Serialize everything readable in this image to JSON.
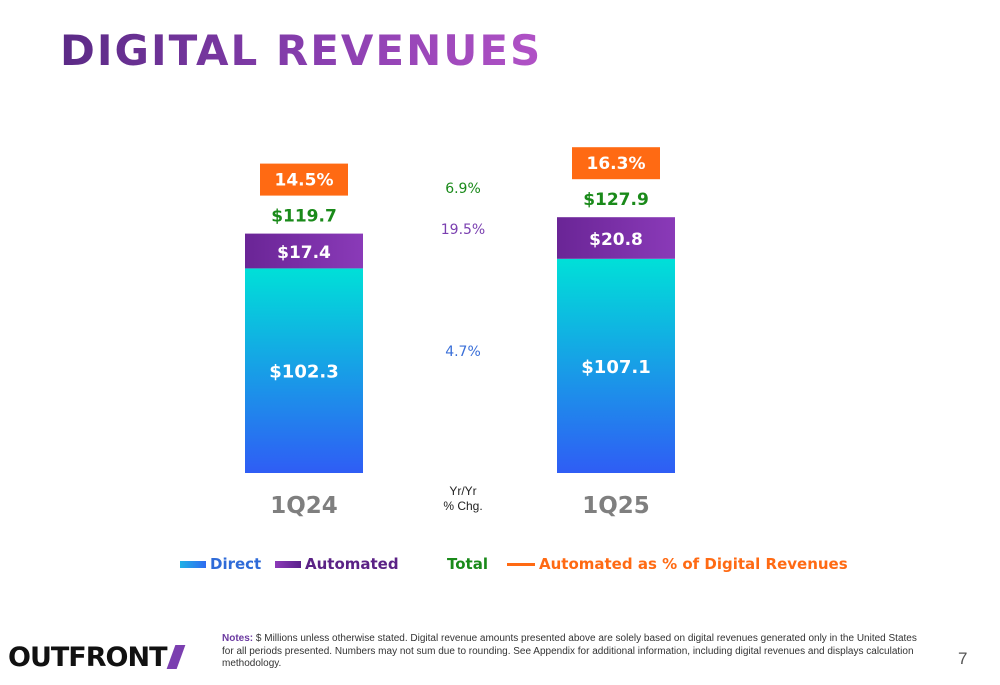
{
  "title": "DIGITAL REVENUES",
  "colors": {
    "direct_top": "#00e0d8",
    "direct_bottom": "#2f5df5",
    "automated": "#7a2fa6",
    "total": "#1a8a1a",
    "pct_box": "#ff6a13",
    "chg_total": "#1a8a1a",
    "chg_automated": "#7a3fb0",
    "chg_direct": "#3a6fd8",
    "category_label": "#7f7f7f"
  },
  "chart_data": {
    "type": "bar",
    "stacked": true,
    "categories": [
      "1Q24",
      "1Q25"
    ],
    "series": [
      {
        "name": "Direct",
        "values": [
          102.3,
          107.1
        ],
        "labels": [
          "$102.3",
          "$107.1"
        ]
      },
      {
        "name": "Automated",
        "values": [
          17.4,
          20.8
        ],
        "labels": [
          "$17.4",
          "$20.8"
        ]
      }
    ],
    "totals": {
      "name": "Total",
      "values": [
        119.7,
        127.9
      ],
      "labels": [
        "$119.7",
        "$127.9"
      ]
    },
    "automated_pct": {
      "name": "Automated as % of Digital Revenues",
      "labels": [
        "14.5%",
        "16.3%"
      ]
    },
    "yoy_change": {
      "header": [
        "Yr/Yr",
        "% Chg."
      ],
      "total": "6.9%",
      "automated": "19.5%",
      "direct": "4.7%"
    },
    "legend": {
      "direct": "Direct",
      "automated": "Automated",
      "total": "Total",
      "pct": "Automated as % of Digital Revenues",
      "placement": "bottom"
    },
    "ylim": [
      0,
      140
    ]
  },
  "notes": {
    "label": "Notes:",
    "text": " $ Millions unless otherwise stated. Digital revenue amounts presented above are solely based on digital revenues generated only in the United States for all periods presented. Numbers may not sum due to rounding. See Appendix for additional information, including digital revenues and displays calculation methodology."
  },
  "logo": "OUTFRONT",
  "page_number": "7"
}
